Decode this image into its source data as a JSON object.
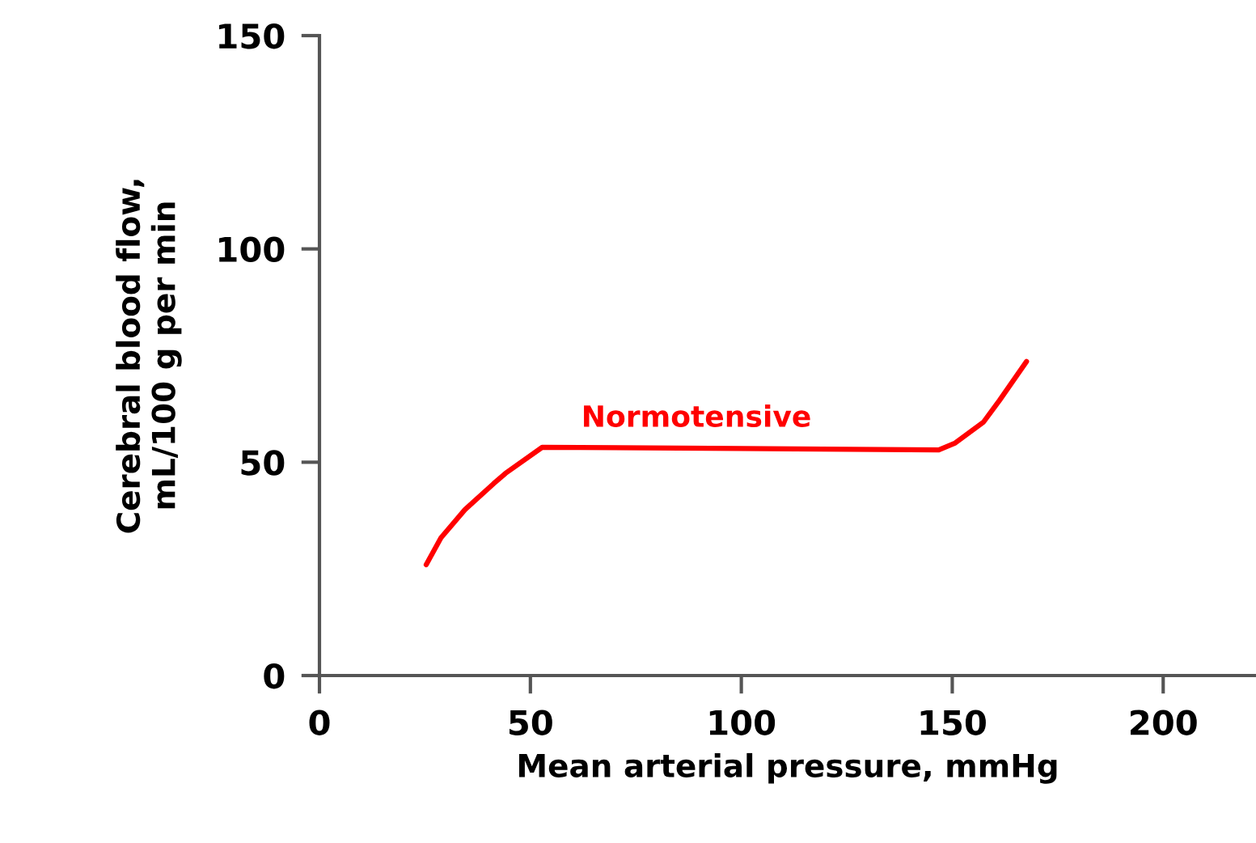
{
  "chart_data": {
    "type": "line",
    "xlabel": "Mean arterial pressure, mmHg",
    "ylabel": "Cerebral blood flow,\nmL/100 g per min",
    "series": [
      {
        "name": "Normotensive",
        "color": "#ff0000",
        "x": [
          25.3,
          28.8,
          34.5,
          41.3,
          44.1,
          52.8,
          100,
          146.8,
          150.7,
          157.4,
          161.2,
          167.6
        ],
        "values": [
          26,
          32.3,
          38.9,
          45,
          47.4,
          53.5,
          53.2,
          52.9,
          54.5,
          59.4,
          64.5,
          73.6
        ]
      }
    ],
    "xlim": [
      0,
      222
    ],
    "ylim": [
      0,
      150
    ],
    "xticks": [
      0,
      50,
      100,
      150,
      200
    ],
    "yticks": [
      0,
      50,
      100,
      150
    ],
    "grid": false,
    "legend": false,
    "marker": "none",
    "line_style": "solid"
  }
}
